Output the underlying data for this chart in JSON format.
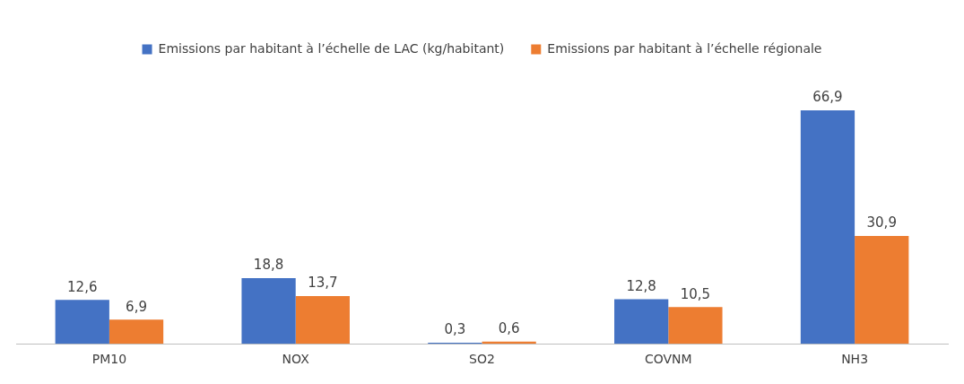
{
  "chart_data": {
    "type": "bar",
    "categories": [
      "PM10",
      "NOX",
      "SO2",
      "COVNM",
      "NH3"
    ],
    "series": [
      {
        "name": "Emissions par habitant à l’échelle de LAC (kg/habitant)",
        "color": "#4472c4",
        "values": [
          12.6,
          18.8,
          0.3,
          12.8,
          66.9
        ],
        "value_labels": [
          "12,6",
          "18,8",
          "0,3",
          "12,8",
          "66,9"
        ]
      },
      {
        "name": "Emissions par habitant à l’échelle régionale",
        "color": "#ed7d31",
        "values": [
          6.9,
          13.7,
          0.6,
          10.5,
          30.9
        ],
        "value_labels": [
          "6,9",
          "13,7",
          "0,6",
          "10,5",
          "30,9"
        ]
      }
    ],
    "legend": "top",
    "grid": false
  }
}
